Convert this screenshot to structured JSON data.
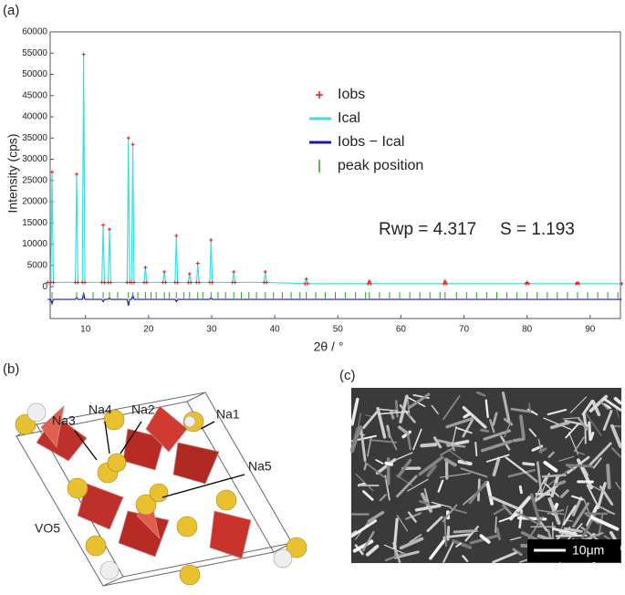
{
  "chart_data": {
    "type": "xrd",
    "panel_label": "(a)",
    "xlabel": "2θ / °",
    "ylabel": "Intensity (cps)",
    "xlim": [
      4.4,
      94.8
    ],
    "ylim": [
      -7500,
      60000
    ],
    "xticks": [
      10,
      20,
      30,
      40,
      50,
      60,
      70,
      80,
      90
    ],
    "yticks": [
      0,
      5000,
      10000,
      15000,
      20000,
      25000,
      30000,
      35000,
      40000,
      45000,
      50000,
      55000,
      60000
    ],
    "x": [
      4,
      4.5,
      4.7,
      4.9,
      8.4,
      8.6,
      8.8,
      9.5,
      9.7,
      9.9,
      12.6,
      12.8,
      13.0,
      13.6,
      13.8,
      14.0,
      16.6,
      16.8,
      17.0,
      17.3,
      17.5,
      17.7,
      19.3,
      19.5,
      19.7,
      22.3,
      22.5,
      22.7,
      24.2,
      24.4,
      24.6,
      26.3,
      26.5,
      26.7,
      27.6,
      27.8,
      28.0,
      29.7,
      29.9,
      30.1,
      33.3,
      33.5,
      33.7,
      38.3,
      38.5,
      38.7,
      44.8,
      45,
      45.2,
      54.8,
      55,
      55.2,
      66.8,
      67,
      67.2,
      79.8,
      80,
      80.2,
      87.8,
      88,
      88.2,
      95
    ],
    "series": [
      {
        "name": "Iobs",
        "color": "#e02020",
        "style": "points",
        "values": [
          1000,
          1000,
          27000,
          1000,
          1000,
          26500,
          1000,
          1000,
          54700,
          1000,
          1000,
          14500,
          1000,
          1000,
          13500,
          1000,
          1000,
          35000,
          1000,
          1000,
          33500,
          1000,
          1000,
          4500,
          1000,
          1000,
          3500,
          1000,
          1000,
          12000,
          1000,
          1000,
          3000,
          1000,
          1000,
          5500,
          1000,
          1000,
          11000,
          1000,
          1000,
          3500,
          1000,
          1000,
          3500,
          1000,
          700,
          1800,
          700,
          700,
          1300,
          700,
          700,
          1300,
          700,
          700,
          1000,
          700,
          700,
          900,
          700,
          700
        ]
      },
      {
        "name": "Ical",
        "color": "#3fdede",
        "style": "line",
        "values": [
          1000,
          1000,
          27000,
          1000,
          1000,
          26500,
          1000,
          1000,
          54700,
          1000,
          1000,
          14500,
          1000,
          1000,
          13500,
          1000,
          1000,
          35000,
          1000,
          1000,
          33500,
          1000,
          1000,
          4500,
          1000,
          1000,
          3500,
          1000,
          1000,
          12000,
          1000,
          1000,
          3000,
          1000,
          1000,
          5500,
          1000,
          1000,
          11000,
          1000,
          1000,
          3500,
          1000,
          1000,
          3500,
          1000,
          700,
          1800,
          700,
          700,
          1300,
          700,
          700,
          1300,
          700,
          700,
          1000,
          700,
          700,
          900,
          700,
          700
        ]
      },
      {
        "name": "Iobs − Ical",
        "color": "#1a1aa8",
        "style": "line",
        "values": [
          -3000,
          -3000,
          -4000,
          -3000,
          -3000,
          -2500,
          -3000,
          -3000,
          -1500,
          -3000,
          -3000,
          -3500,
          -3000,
          -3000,
          -2600,
          -3000,
          -3000,
          -4500,
          -3000,
          -3000,
          -2000,
          -3000,
          -3000,
          -3000,
          -3000,
          -3000,
          -3000,
          -3000,
          -3000,
          -3500,
          -3000,
          -3000,
          -3000,
          -3000,
          -3000,
          -3000,
          -3000,
          -3000,
          -2600,
          -3000,
          -3000,
          -3000,
          -3000,
          -3000,
          -3000,
          -3000,
          -3000,
          -3000,
          -3000,
          -3000,
          -3000,
          -3000,
          -3000,
          -3000,
          -3000,
          -3000,
          -3000,
          -3000,
          -3000,
          -3000,
          -3000,
          -3000
        ]
      },
      {
        "name": "peak position",
        "color": "#2a9a2a",
        "style": "ticks",
        "positions": [
          4.7,
          8.6,
          9.7,
          11.2,
          12.8,
          13.8,
          15.1,
          16.8,
          17.5,
          18.3,
          19.5,
          20.4,
          21.2,
          22.5,
          23.3,
          24.4,
          25.6,
          26.5,
          27.8,
          28.6,
          29.9,
          31.0,
          32.2,
          33.5,
          34.7,
          35.9,
          37.1,
          38.5,
          39.8,
          41.2,
          42.6,
          44.0,
          45.0,
          46.5,
          48.0,
          49.6,
          51.2,
          52.8,
          54.4,
          55.0,
          56.6,
          58.2,
          59.8,
          61.4,
          63.0,
          64.6,
          66.2,
          67.0,
          68.8,
          70.4,
          72.0,
          73.6,
          75.2,
          76.8,
          78.4,
          80.0,
          81.6,
          83.2,
          84.8,
          86.4,
          88.0,
          89.6,
          91.2,
          92.8,
          94.4
        ]
      }
    ],
    "annotations": [
      "Rwp =  4.317",
      "S = 1.193"
    ]
  },
  "structure": {
    "panel_label": "(b)",
    "labels": [
      "Na3",
      "Na4",
      "Na2",
      "Na1",
      "Na5",
      "VO5"
    ]
  },
  "micrograph": {
    "panel_label": "(c)",
    "scale_bar": "10μm"
  }
}
